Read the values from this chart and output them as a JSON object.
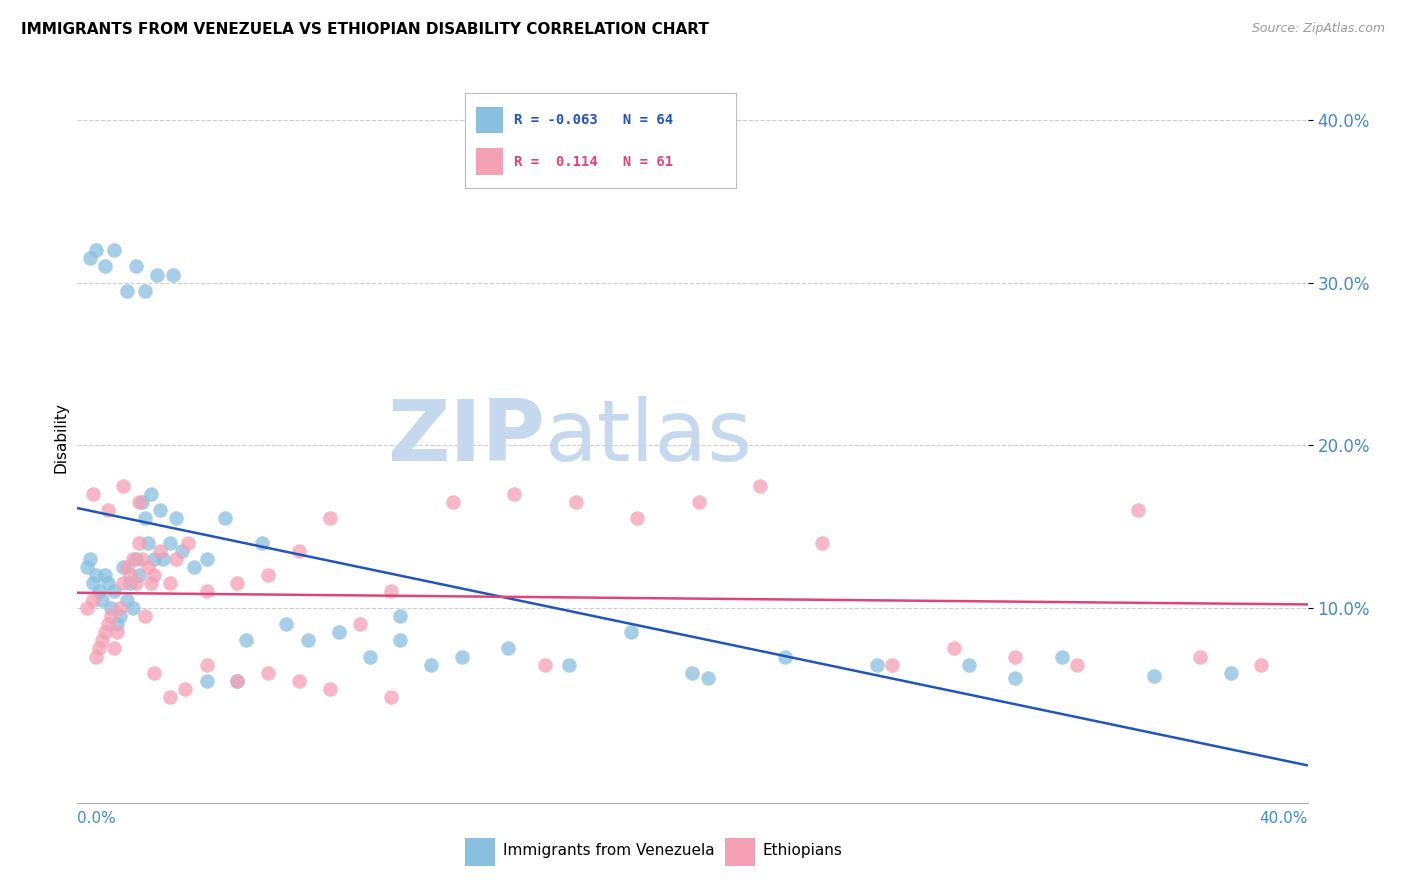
{
  "title": "IMMIGRANTS FROM VENEZUELA VS ETHIOPIAN DISABILITY CORRELATION CHART",
  "source": "Source: ZipAtlas.com",
  "ylabel": "Disability",
  "R1": -0.063,
  "N1": 64,
  "R2": 0.114,
  "N2": 61,
  "xlim": [
    0.0,
    0.4
  ],
  "ylim": [
    -0.02,
    0.43
  ],
  "yticks": [
    0.1,
    0.2,
    0.3,
    0.4
  ],
  "ytick_labels": [
    "10.0%",
    "20.0%",
    "30.0%",
    "40.0%"
  ],
  "color_blue": "#89bfdf",
  "color_pink": "#f4a0b5",
  "color_blue_line": "#2255bb",
  "color_pink_line": "#dd4477",
  "color_axis_text": "#4488cc",
  "watermark_zip_color": "#c5d8ee",
  "watermark_atlas_color": "#c5d8ee",
  "background_color": "#ffffff",
  "grid_color": "#cccccc",
  "blue_points_x": [
    0.003,
    0.004,
    0.005,
    0.006,
    0.007,
    0.008,
    0.009,
    0.01,
    0.011,
    0.012,
    0.013,
    0.014,
    0.015,
    0.016,
    0.017,
    0.018,
    0.019,
    0.02,
    0.021,
    0.022,
    0.023,
    0.024,
    0.025,
    0.027,
    0.028,
    0.03,
    0.032,
    0.034,
    0.038,
    0.042,
    0.048,
    0.055,
    0.06,
    0.068,
    0.075,
    0.085,
    0.095,
    0.105,
    0.115,
    0.125,
    0.14,
    0.16,
    0.18,
    0.2,
    0.23,
    0.26,
    0.29,
    0.32,
    0.35,
    0.375,
    0.004,
    0.006,
    0.009,
    0.012,
    0.016,
    0.019,
    0.022,
    0.026,
    0.031,
    0.042,
    0.052,
    0.105,
    0.205,
    0.305
  ],
  "blue_points_y": [
    0.125,
    0.13,
    0.115,
    0.12,
    0.11,
    0.105,
    0.12,
    0.115,
    0.1,
    0.11,
    0.09,
    0.095,
    0.125,
    0.105,
    0.115,
    0.1,
    0.13,
    0.12,
    0.165,
    0.155,
    0.14,
    0.17,
    0.13,
    0.16,
    0.13,
    0.14,
    0.155,
    0.135,
    0.125,
    0.13,
    0.155,
    0.08,
    0.14,
    0.09,
    0.08,
    0.085,
    0.07,
    0.08,
    0.065,
    0.07,
    0.075,
    0.065,
    0.085,
    0.06,
    0.07,
    0.065,
    0.065,
    0.07,
    0.058,
    0.06,
    0.315,
    0.32,
    0.31,
    0.32,
    0.295,
    0.31,
    0.295,
    0.305,
    0.305,
    0.055,
    0.055,
    0.095,
    0.057,
    0.057
  ],
  "pink_points_x": [
    0.003,
    0.005,
    0.006,
    0.007,
    0.008,
    0.009,
    0.01,
    0.011,
    0.012,
    0.013,
    0.014,
    0.015,
    0.016,
    0.017,
    0.018,
    0.019,
    0.02,
    0.021,
    0.022,
    0.023,
    0.024,
    0.025,
    0.027,
    0.03,
    0.032,
    0.036,
    0.042,
    0.052,
    0.062,
    0.072,
    0.082,
    0.092,
    0.102,
    0.122,
    0.142,
    0.162,
    0.182,
    0.202,
    0.222,
    0.242,
    0.265,
    0.285,
    0.305,
    0.325,
    0.345,
    0.365,
    0.385,
    0.005,
    0.01,
    0.015,
    0.02,
    0.025,
    0.03,
    0.035,
    0.042,
    0.052,
    0.062,
    0.072,
    0.082,
    0.102,
    0.152
  ],
  "pink_points_y": [
    0.1,
    0.105,
    0.07,
    0.075,
    0.08,
    0.085,
    0.09,
    0.095,
    0.075,
    0.085,
    0.1,
    0.115,
    0.125,
    0.12,
    0.13,
    0.115,
    0.14,
    0.13,
    0.095,
    0.125,
    0.115,
    0.12,
    0.135,
    0.115,
    0.13,
    0.14,
    0.11,
    0.115,
    0.12,
    0.135,
    0.155,
    0.09,
    0.11,
    0.165,
    0.17,
    0.165,
    0.155,
    0.165,
    0.175,
    0.14,
    0.065,
    0.075,
    0.07,
    0.065,
    0.16,
    0.07,
    0.065,
    0.17,
    0.16,
    0.175,
    0.165,
    0.06,
    0.045,
    0.05,
    0.065,
    0.055,
    0.06,
    0.055,
    0.05,
    0.045,
    0.065
  ]
}
